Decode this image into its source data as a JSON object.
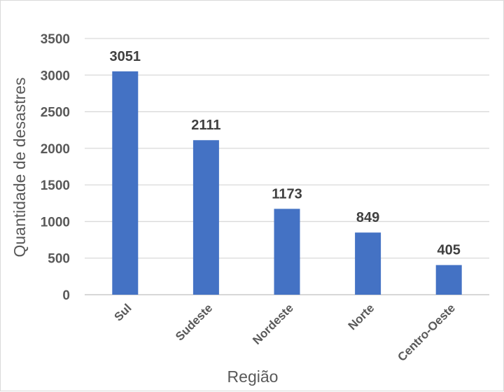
{
  "chart_data": {
    "type": "bar",
    "title": "",
    "xlabel": "Região",
    "ylabel": "Quantidade de desastres",
    "categories": [
      "Sul",
      "Sudeste",
      "Nordeste",
      "Norte",
      "Centro-Oeste"
    ],
    "values": [
      3051,
      2111,
      1173,
      849,
      405
    ],
    "data_labels": [
      "3051",
      "2111",
      "1173",
      "849",
      "405"
    ],
    "ylim": [
      0,
      3500
    ],
    "yticks": [
      0,
      500,
      1000,
      1500,
      2000,
      2500,
      3000,
      3500
    ],
    "grid": true,
    "legend": "none",
    "bar_color": "#4472c4",
    "grid_color": "#d9d9d9"
  }
}
